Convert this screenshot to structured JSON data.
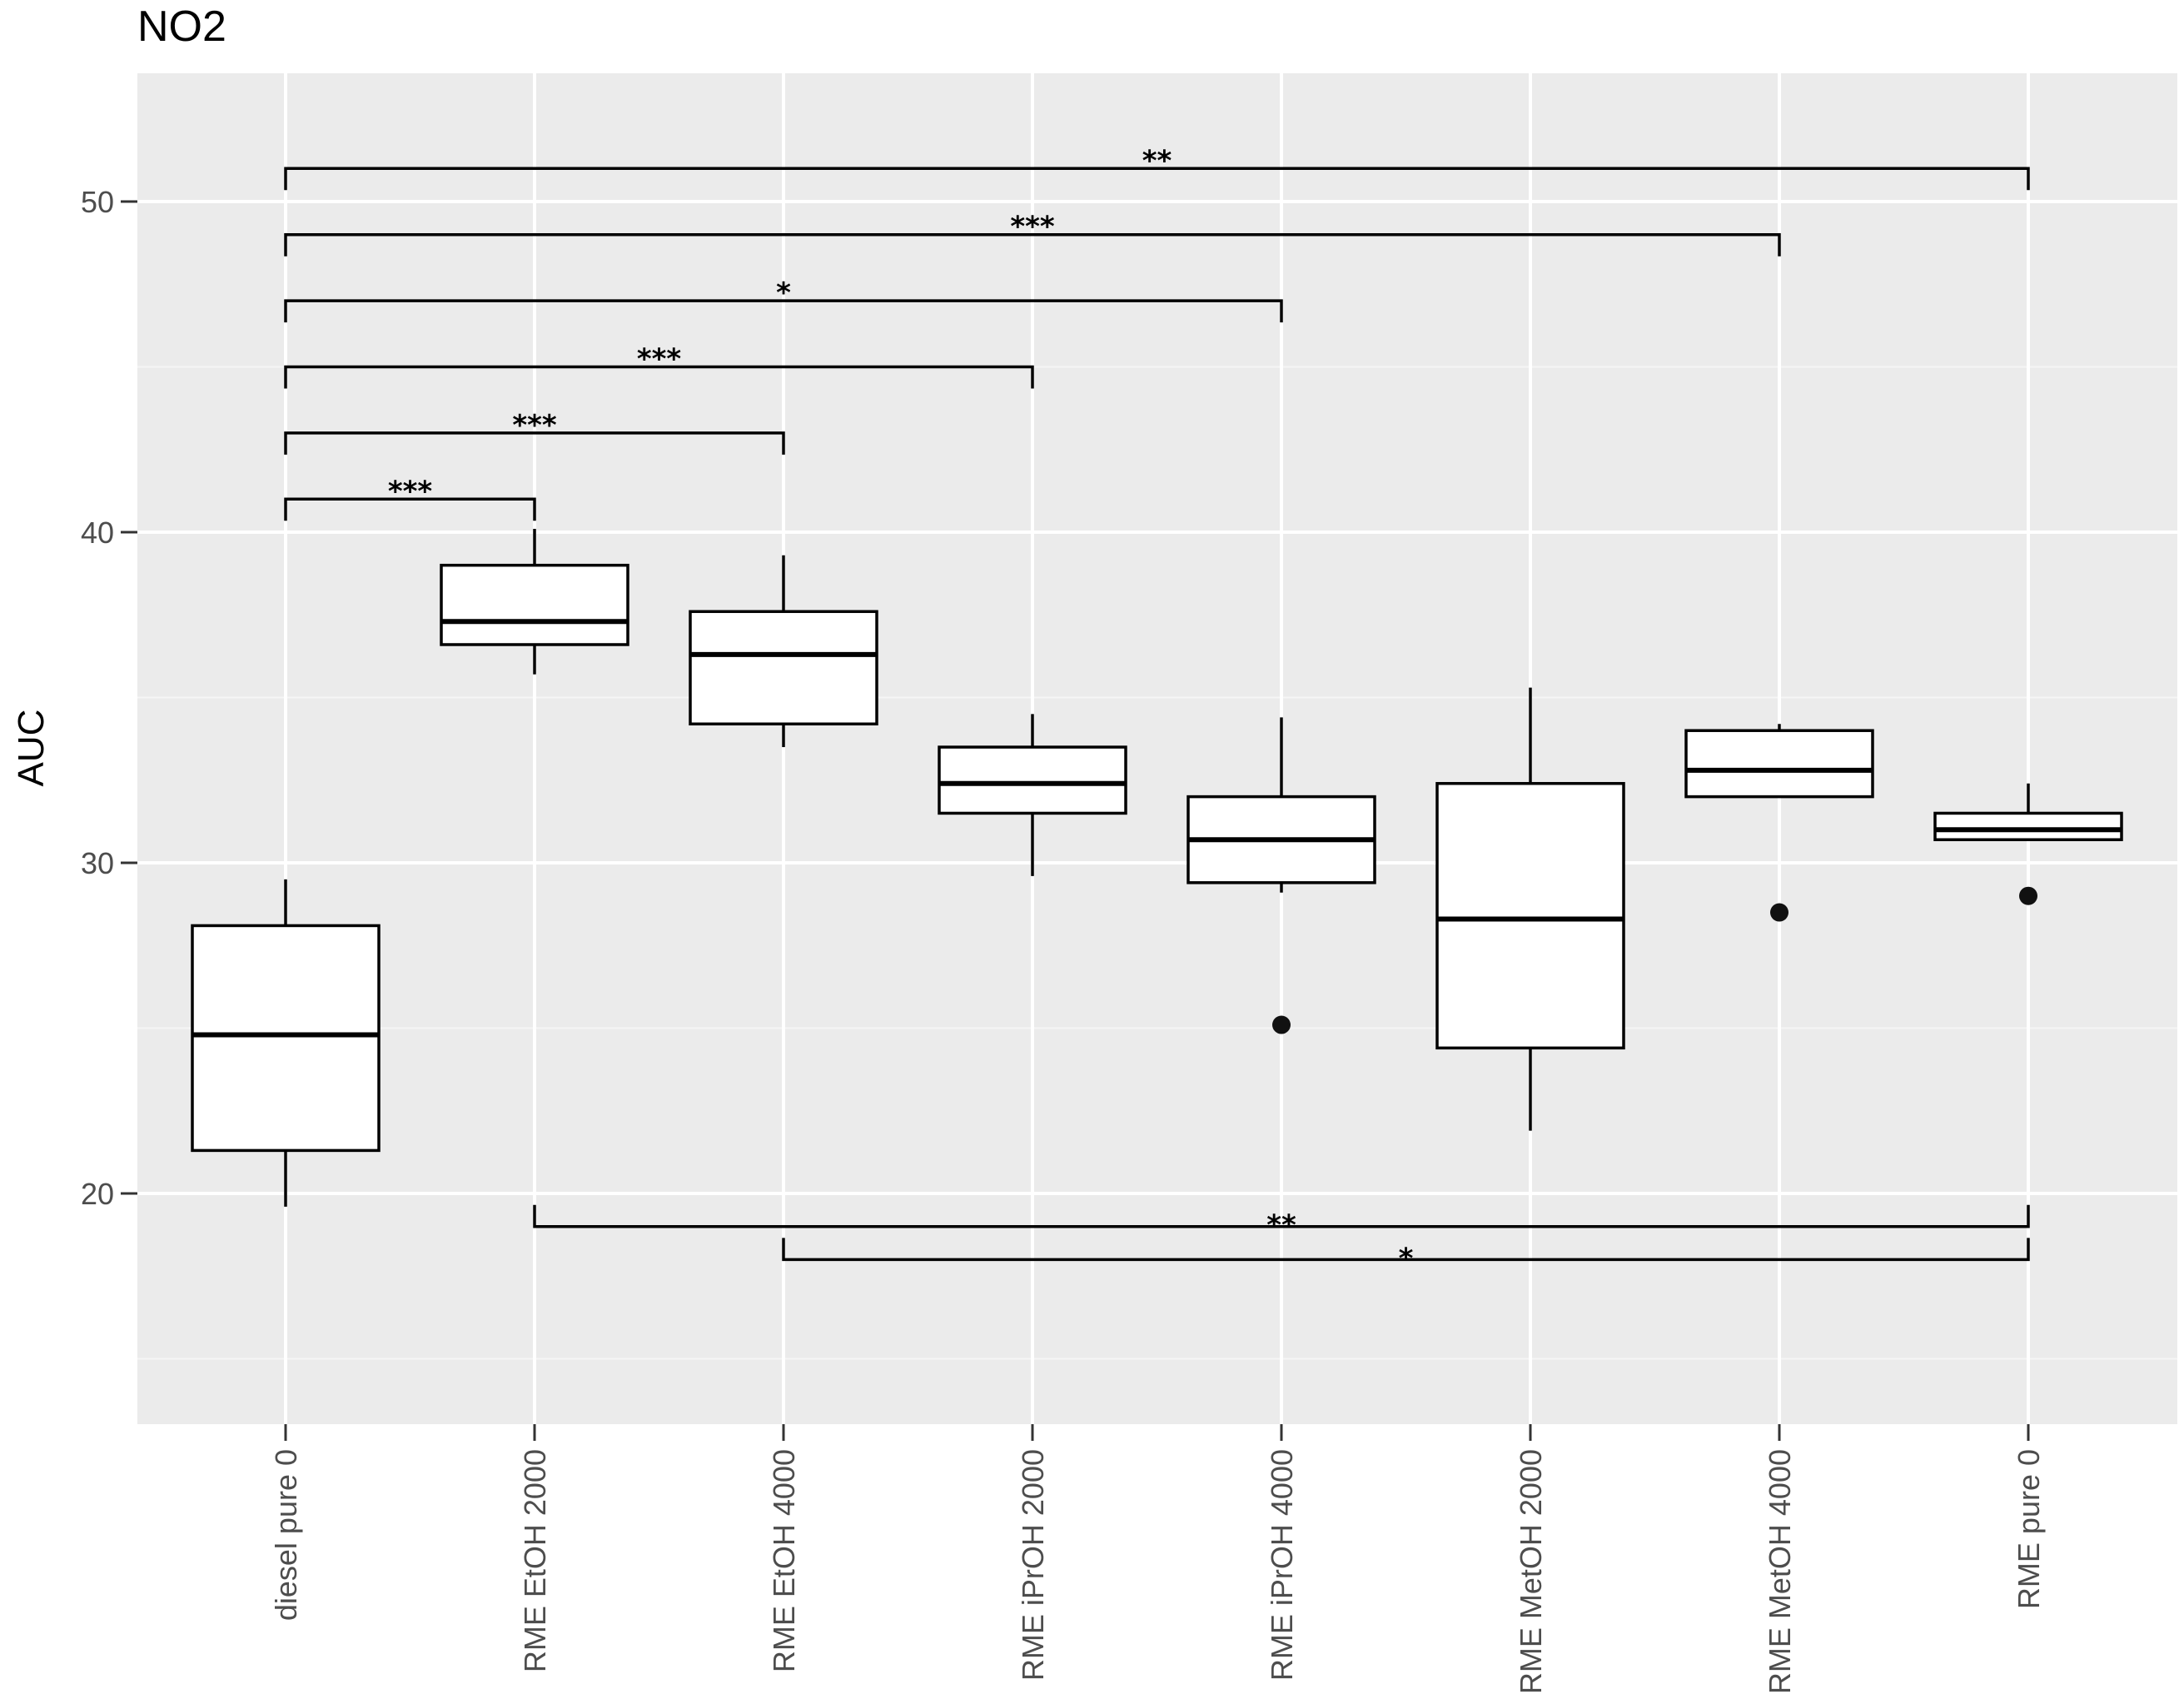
{
  "chart_data": {
    "type": "boxplot",
    "title": "NO2",
    "xlabel": "",
    "ylabel": "AUC",
    "ylim": [
      13,
      53
    ],
    "y_ticks": [
      20,
      30,
      40,
      50
    ],
    "grid": true,
    "categories": [
      "diesel pure 0",
      "RME EtOH 2000",
      "RME EtOH 4000",
      "RME iPrOH 2000",
      "RME iPrOH 4000",
      "RME MetOH 2000",
      "RME MetOH 4000",
      "RME pure 0"
    ],
    "boxes": [
      {
        "category": "diesel pure 0",
        "whisker_low": 19.6,
        "q1": 21.3,
        "median": 24.8,
        "q3": 28.1,
        "whisker_high": 29.5,
        "outliers": []
      },
      {
        "category": "RME EtOH 2000",
        "whisker_low": 35.7,
        "q1": 36.6,
        "median": 37.3,
        "q3": 39.0,
        "whisker_high": 40.1,
        "outliers": []
      },
      {
        "category": "RME EtOH 4000",
        "whisker_low": 33.5,
        "q1": 34.2,
        "median": 36.3,
        "q3": 37.6,
        "whisker_high": 39.3,
        "outliers": []
      },
      {
        "category": "RME iPrOH 2000",
        "whisker_low": 29.6,
        "q1": 31.5,
        "median": 32.4,
        "q3": 33.5,
        "whisker_high": 34.5,
        "outliers": []
      },
      {
        "category": "RME iPrOH 4000",
        "whisker_low": 29.1,
        "q1": 29.4,
        "median": 30.7,
        "q3": 32.0,
        "whisker_high": 34.4,
        "outliers": [
          25.1
        ]
      },
      {
        "category": "RME MetOH 2000",
        "whisker_low": 21.9,
        "q1": 24.4,
        "median": 28.3,
        "q3": 32.4,
        "whisker_high": 35.3,
        "outliers": []
      },
      {
        "category": "RME MetOH 4000",
        "whisker_low": 32.0,
        "q1": 32.0,
        "median": 32.8,
        "q3": 34.0,
        "whisker_high": 34.2,
        "outliers": [
          28.5
        ]
      },
      {
        "category": "RME pure 0",
        "whisker_low": 30.7,
        "q1": 30.7,
        "median": 31.0,
        "q3": 31.5,
        "whisker_high": 32.4,
        "outliers": [
          29.0
        ]
      }
    ],
    "significance": [
      {
        "from": 0,
        "to": 1,
        "y": 41.0,
        "label": "***",
        "direction": "down"
      },
      {
        "from": 0,
        "to": 2,
        "y": 43.0,
        "label": "***",
        "direction": "down"
      },
      {
        "from": 0,
        "to": 3,
        "y": 45.0,
        "label": "***",
        "direction": "down"
      },
      {
        "from": 0,
        "to": 4,
        "y": 47.0,
        "label": "*",
        "direction": "down"
      },
      {
        "from": 0,
        "to": 6,
        "y": 49.0,
        "label": "***",
        "direction": "down"
      },
      {
        "from": 0,
        "to": 7,
        "y": 51.0,
        "label": "**",
        "direction": "down"
      },
      {
        "from": 1,
        "to": 7,
        "y": 19.0,
        "label": "**",
        "direction": "up"
      },
      {
        "from": 2,
        "to": 7,
        "y": 18.0,
        "label": "*",
        "direction": "up"
      }
    ],
    "colors": {
      "panel": "#ebebeb",
      "grid_major": "#ffffff",
      "grid_minor": "#f5f5f5",
      "box_fill": "#ffffff",
      "stroke": "#000000",
      "tick_text": "#4d4d4d"
    }
  }
}
